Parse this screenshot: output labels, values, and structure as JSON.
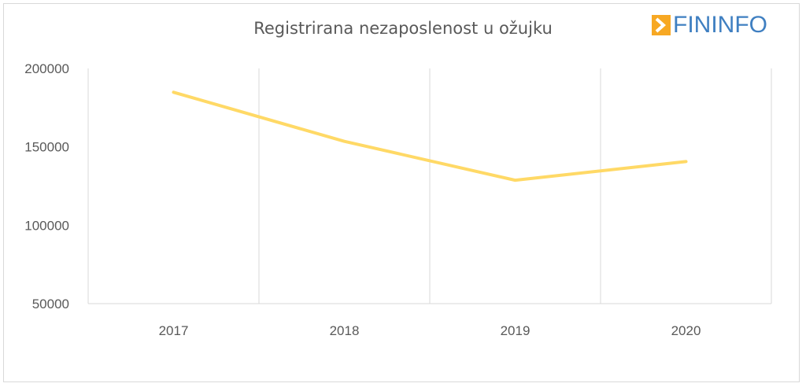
{
  "brand": {
    "name": "FININFO",
    "colors": {
      "text": "#3f7fc1",
      "arrow_box": "#f7a823"
    },
    "icon": "arrow-right-icon"
  },
  "chart_data": {
    "type": "line",
    "title": "Registrirana nezaposlenost u ožujku",
    "xlabel": "",
    "ylabel": "",
    "categories": [
      "2017",
      "2018",
      "2019",
      "2020"
    ],
    "series": [
      {
        "values": [
          184800,
          153500,
          128700,
          140600
        ],
        "color": "#ffd966"
      }
    ],
    "ylim": [
      50000,
      200000
    ],
    "yticks": [
      50000,
      100000,
      150000,
      200000
    ],
    "ytick_labels": [
      "50000",
      "100000",
      "150000",
      "200000"
    ],
    "grid": {
      "vertical": true,
      "horizontal": false
    },
    "legend": "none"
  }
}
